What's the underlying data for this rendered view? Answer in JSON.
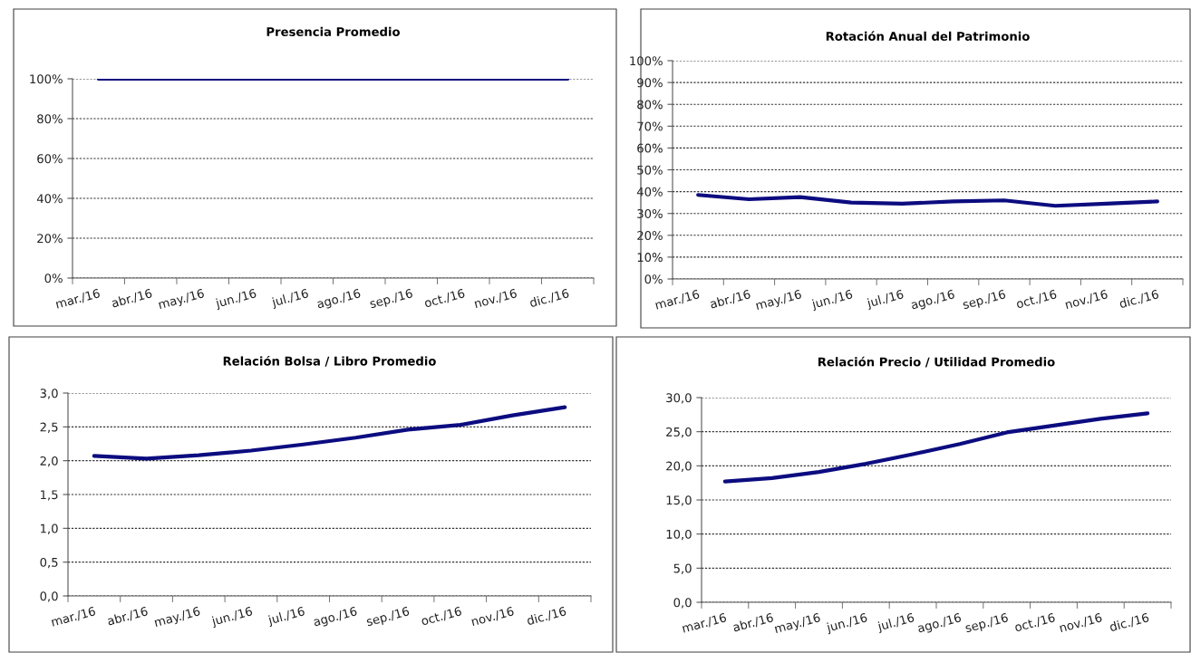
{
  "chart_data": [
    {
      "type": "line",
      "title": "Presencia Promedio",
      "categories": [
        "mar./16",
        "abr./16",
        "may./16",
        "jun./16",
        "jul./16",
        "ago./16",
        "sep./16",
        "oct./16",
        "nov./16",
        "dic./16"
      ],
      "series": [
        {
          "color": "#0c0c80",
          "values": [
            100,
            100,
            100,
            100,
            100,
            100,
            100,
            100,
            100,
            100
          ]
        }
      ],
      "ylim": [
        0,
        100
      ],
      "yticks": [
        {
          "value": 0,
          "label": "0%"
        },
        {
          "value": 20,
          "label": "20%"
        },
        {
          "value": 40,
          "label": "40%"
        },
        {
          "value": 60,
          "label": "60%"
        },
        {
          "value": 80,
          "label": "80%"
        },
        {
          "value": 100,
          "label": "100%"
        }
      ],
      "grid": "y",
      "line_style": "solid",
      "marker": "none"
    },
    {
      "type": "line",
      "title": "Rotación Anual del Patrimonio",
      "categories": [
        "mar./16",
        "abr./16",
        "may./16",
        "jun./16",
        "jul./16",
        "ago./16",
        "sep./16",
        "oct./16",
        "nov./16",
        "dic./16"
      ],
      "series": [
        {
          "color": "#0c0c80",
          "values": [
            38.5,
            36.5,
            37.5,
            35,
            34.5,
            35.5,
            36,
            33.5,
            34.5,
            35.5
          ]
        }
      ],
      "ylim": [
        0,
        100
      ],
      "yticks": [
        {
          "value": 0,
          "label": "0%"
        },
        {
          "value": 10,
          "label": "10%"
        },
        {
          "value": 20,
          "label": "20%"
        },
        {
          "value": 30,
          "label": "30%"
        },
        {
          "value": 40,
          "label": "40%"
        },
        {
          "value": 50,
          "label": "50%"
        },
        {
          "value": 60,
          "label": "60%"
        },
        {
          "value": 70,
          "label": "70%"
        },
        {
          "value": 80,
          "label": "80%"
        },
        {
          "value": 90,
          "label": "90%"
        },
        {
          "value": 100,
          "label": "100%"
        }
      ],
      "grid": "y",
      "line_style": "solid",
      "marker": "none"
    },
    {
      "type": "line",
      "title": "Relación Bolsa / Libro Promedio",
      "categories": [
        "mar./16",
        "abr./16",
        "may./16",
        "jun./16",
        "jul./16",
        "ago./16",
        "sep./16",
        "oct./16",
        "nov./16",
        "dic./16"
      ],
      "series": [
        {
          "color": "#0c0c80",
          "values": [
            2.07,
            2.03,
            2.08,
            2.15,
            2.24,
            2.34,
            2.46,
            2.53,
            2.67,
            2.79
          ]
        }
      ],
      "ylim": [
        0,
        3
      ],
      "yticks": [
        {
          "value": 0,
          "label": "0,0"
        },
        {
          "value": 0.5,
          "label": "0,5"
        },
        {
          "value": 1,
          "label": "1,0"
        },
        {
          "value": 1.5,
          "label": "1,5"
        },
        {
          "value": 2,
          "label": "2,0"
        },
        {
          "value": 2.5,
          "label": "2,5"
        },
        {
          "value": 3,
          "label": "3,0"
        }
      ],
      "grid": "y",
      "line_style": "solid",
      "marker": "none"
    },
    {
      "type": "line",
      "title": "Relación Precio / Utilidad Promedio",
      "categories": [
        "mar./16",
        "abr./16",
        "may./16",
        "jun./16",
        "jul./16",
        "ago./16",
        "sep./16",
        "oct./16",
        "nov./16",
        "dic./16"
      ],
      "series": [
        {
          "color": "#0c0c80",
          "values": [
            17.7,
            18.2,
            19.1,
            20.3,
            21.7,
            23.2,
            24.9,
            25.9,
            26.9,
            27.7
          ]
        }
      ],
      "ylim": [
        0,
        30
      ],
      "yticks": [
        {
          "value": 0,
          "label": "0,0"
        },
        {
          "value": 5,
          "label": "5,0"
        },
        {
          "value": 10,
          "label": "10,0"
        },
        {
          "value": 15,
          "label": "15,0"
        },
        {
          "value": 20,
          "label": "20,0"
        },
        {
          "value": 25,
          "label": "25,0"
        },
        {
          "value": 30,
          "label": "30,0"
        }
      ],
      "grid": "y",
      "line_style": "solid",
      "marker": "none"
    }
  ]
}
